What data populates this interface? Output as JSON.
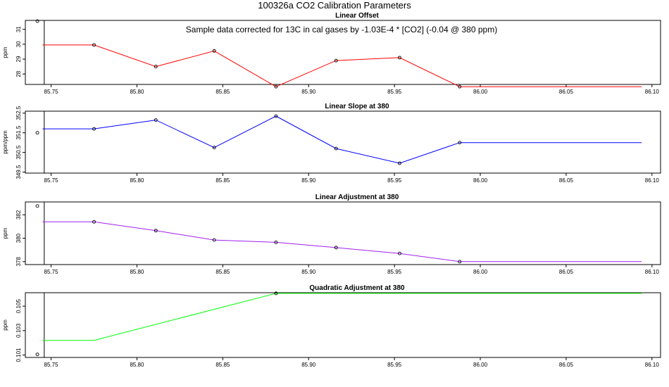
{
  "figure": {
    "title": "100326a   CO2 Calibration Parameters",
    "annotation": "Sample data corrected for 13C in cal gases by -1.03E-4 * [CO2] (-0.04 @ 380 ppm)"
  },
  "colors": {
    "axis": "#000000",
    "reference_line": "#000000"
  },
  "chart_data": [
    {
      "type": "line",
      "title": "Linear Offset",
      "ylabel": "ppm",
      "color": "#ff0000",
      "xlim": [
        85.735,
        86.105
      ],
      "ylim": [
        27.3,
        31.6
      ],
      "xticks": [
        85.75,
        85.8,
        85.85,
        85.9,
        85.95,
        86.0,
        86.05,
        86.1
      ],
      "xtick_labels": [
        "85.75",
        "85.80",
        "85.85",
        "85.90",
        "85.95",
        "86.00",
        "86.05",
        "86.10"
      ],
      "yticks": [
        28,
        29,
        30,
        31
      ],
      "ytick_labels": [
        "28",
        "29",
        "30",
        "31"
      ],
      "vline_x": 85.746,
      "points": [
        {
          "x": 85.775,
          "y": 29.95
        },
        {
          "x": 85.811,
          "y": 28.5
        },
        {
          "x": 85.845,
          "y": 29.55
        },
        {
          "x": 85.881,
          "y": 27.15
        },
        {
          "x": 85.916,
          "y": 28.9
        },
        {
          "x": 85.953,
          "y": 29.1
        },
        {
          "x": 85.988,
          "y": 27.15
        }
      ],
      "line_x": [
        85.745,
        85.775,
        85.811,
        85.845,
        85.881,
        85.916,
        85.953,
        85.988,
        86.094
      ],
      "line_y": [
        29.95,
        29.95,
        28.5,
        29.55,
        27.15,
        28.9,
        29.1,
        27.15,
        27.15
      ],
      "outlier": {
        "x": 85.742,
        "y": 31.55
      }
    },
    {
      "type": "line",
      "title": "Linear Slope at 380",
      "ylabel": "ppm/ppm",
      "color": "#0000ff",
      "xlim": [
        85.735,
        86.105
      ],
      "ylim": [
        349.45,
        352.6
      ],
      "xticks": [
        85.75,
        85.8,
        85.85,
        85.9,
        85.95,
        86.0,
        86.05,
        86.1
      ],
      "xtick_labels": [
        "85.75",
        "85.80",
        "85.85",
        "85.90",
        "85.95",
        "86.00",
        "86.05",
        "86.10"
      ],
      "yticks": [
        349.5,
        350.5,
        351.5,
        352.5
      ],
      "ytick_labels": [
        "349.5",
        "350.5",
        "351.5",
        "352.5"
      ],
      "vline_x": 85.746,
      "points": [
        {
          "x": 85.775,
          "y": 351.7
        },
        {
          "x": 85.811,
          "y": 352.15
        },
        {
          "x": 85.845,
          "y": 350.75
        },
        {
          "x": 85.881,
          "y": 352.35
        },
        {
          "x": 85.916,
          "y": 350.7
        },
        {
          "x": 85.953,
          "y": 349.95
        },
        {
          "x": 85.988,
          "y": 351.0
        }
      ],
      "line_x": [
        85.745,
        85.775,
        85.811,
        85.845,
        85.881,
        85.916,
        85.953,
        85.988,
        86.094
      ],
      "line_y": [
        351.7,
        351.7,
        352.15,
        350.75,
        352.35,
        350.7,
        349.95,
        351.0,
        351.0
      ],
      "outlier": {
        "x": 85.742,
        "y": 351.5
      }
    },
    {
      "type": "line",
      "title": "Linear Adjustment at 380",
      "ylabel": "ppm",
      "color": "#a020f0",
      "xlim": [
        85.735,
        86.105
      ],
      "ylim": [
        377.75,
        383.1
      ],
      "xticks": [
        85.75,
        85.8,
        85.85,
        85.9,
        85.95,
        86.0,
        86.05,
        86.1
      ],
      "xtick_labels": [
        "85.75",
        "85.80",
        "85.85",
        "85.90",
        "85.95",
        "86.00",
        "86.05",
        "86.10"
      ],
      "yticks": [
        378,
        380,
        382
      ],
      "ytick_labels": [
        "378",
        "380",
        "382"
      ],
      "vline_x": 85.746,
      "points": [
        {
          "x": 85.775,
          "y": 381.4
        },
        {
          "x": 85.811,
          "y": 380.65
        },
        {
          "x": 85.845,
          "y": 379.85
        },
        {
          "x": 85.881,
          "y": 379.65
        },
        {
          "x": 85.916,
          "y": 379.2
        },
        {
          "x": 85.953,
          "y": 378.7
        },
        {
          "x": 85.988,
          "y": 378.0
        }
      ],
      "line_x": [
        85.745,
        85.775,
        85.811,
        85.845,
        85.881,
        85.916,
        85.953,
        85.988,
        86.094
      ],
      "line_y": [
        381.4,
        381.4,
        380.65,
        379.85,
        379.65,
        379.2,
        378.7,
        378.0,
        378.0
      ],
      "outlier": {
        "x": 85.742,
        "y": 382.75
      }
    },
    {
      "type": "line",
      "title": "Quadratic Adjustment at 380",
      "ylabel": "ppm",
      "color": "#00ff00",
      "xlim": [
        85.735,
        86.105
      ],
      "ylim": [
        0.1008,
        0.1061
      ],
      "xticks": [
        85.75,
        85.8,
        85.85,
        85.9,
        85.95,
        86.0,
        86.05,
        86.1
      ],
      "xtick_labels": [
        "85.75",
        "85.80",
        "85.85",
        "85.90",
        "85.95",
        "86.00",
        "86.05",
        "86.10"
      ],
      "yticks": [
        0.101,
        0.103,
        0.105
      ],
      "ytick_labels": [
        "0.101",
        "0.103",
        "0.105"
      ],
      "vline_x": 85.746,
      "points": [
        {
          "x": 85.881,
          "y": 0.10605
        }
      ],
      "line_x": [
        85.745,
        85.775,
        85.881,
        86.094
      ],
      "line_y": [
        0.1022,
        0.1022,
        0.10605,
        0.10605
      ],
      "outlier": {
        "x": 85.742,
        "y": 0.10105
      }
    }
  ]
}
